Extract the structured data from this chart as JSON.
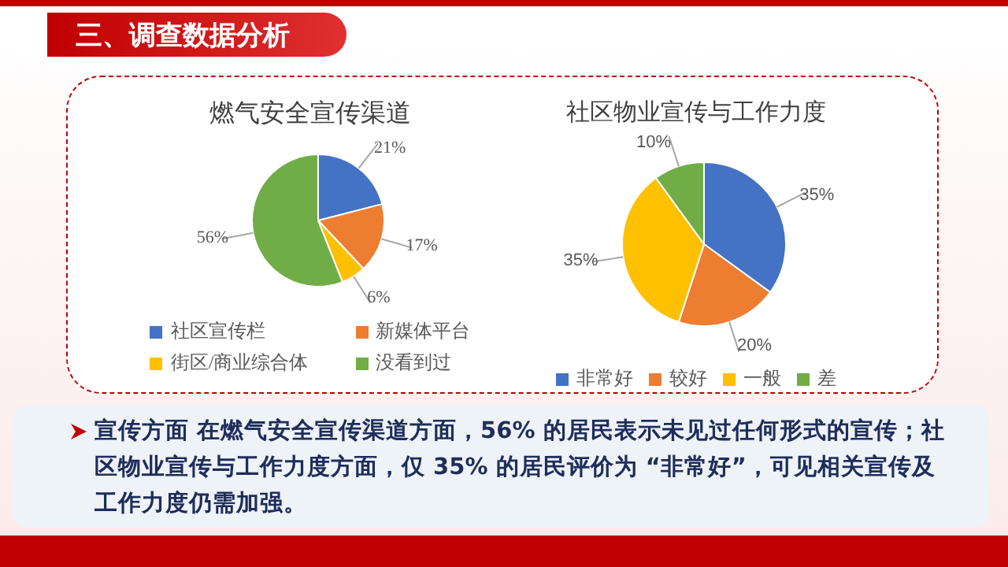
{
  "chart_data": [
    {
      "type": "pie",
      "title": "燃气安全宣传渠道",
      "categories": [
        "社区宣传栏",
        "新媒体平台",
        "街区/商业综合体",
        "没看到过"
      ],
      "values": [
        21,
        17,
        6,
        56
      ],
      "value_labels": [
        "21%",
        "17%",
        "6%",
        "56%"
      ],
      "colors": [
        "#4472c4",
        "#ed7d31",
        "#ffc000",
        "#70ad47"
      ],
      "legend": "bottom",
      "annotations": [
        "三、调查数据分析"
      ]
    },
    {
      "type": "pie",
      "title": "社区物业宣传与工作力度",
      "categories": [
        "非常好",
        "较好",
        "一般",
        "差"
      ],
      "values": [
        35,
        20,
        35,
        10
      ],
      "value_labels": [
        "35%",
        "20%",
        "35%",
        "10%"
      ],
      "colors": [
        "#4472c4",
        "#ed7d31",
        "#ffc000",
        "#70ad47"
      ],
      "legend": "bottom",
      "annotations": [
        "宣传方面 在燃气安全宣传渠道方面，56% 的居民表示未见过任何形式的宣传；社区物业宣传与工作力度方面，仅 35% 的居民评价为 “非常好”，可见相关宣传及工作力度仍需加强。"
      ]
    }
  ]
}
